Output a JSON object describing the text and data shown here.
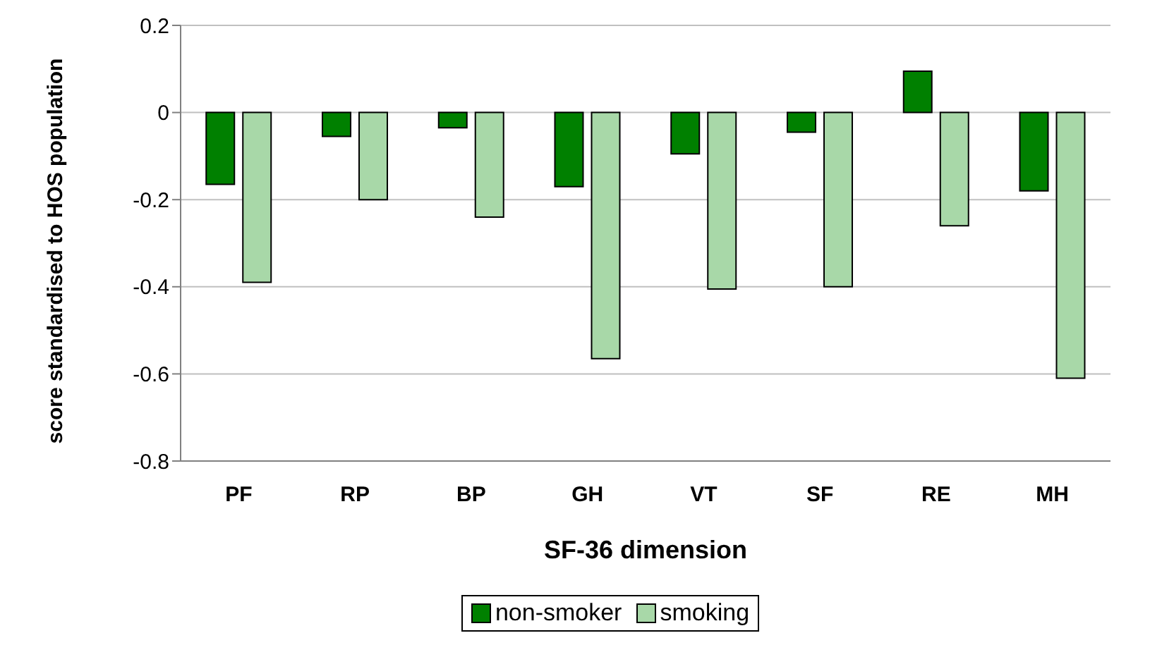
{
  "chart_data": {
    "type": "bar",
    "xlabel": "SF-36 dimension",
    "ylabel": "score standardised to HOS population",
    "categories": [
      "PF",
      "RP",
      "BP",
      "GH",
      "VT",
      "SF",
      "RE",
      "MH"
    ],
    "series": [
      {
        "name": "non-smoker",
        "color": "#008000",
        "values": [
          -0.165,
          -0.055,
          -0.035,
          -0.17,
          -0.095,
          -0.045,
          0.095,
          -0.18
        ]
      },
      {
        "name": "smoking",
        "color": "#a8d8a8",
        "values": [
          -0.39,
          -0.2,
          -0.24,
          -0.565,
          -0.405,
          -0.4,
          -0.26,
          -0.61
        ]
      }
    ],
    "ylim": [
      -0.8,
      0.2
    ],
    "yticks": [
      -0.8,
      -0.6,
      -0.4,
      -0.2,
      0,
      0.2
    ],
    "grid": "y",
    "legend": "bottom"
  }
}
